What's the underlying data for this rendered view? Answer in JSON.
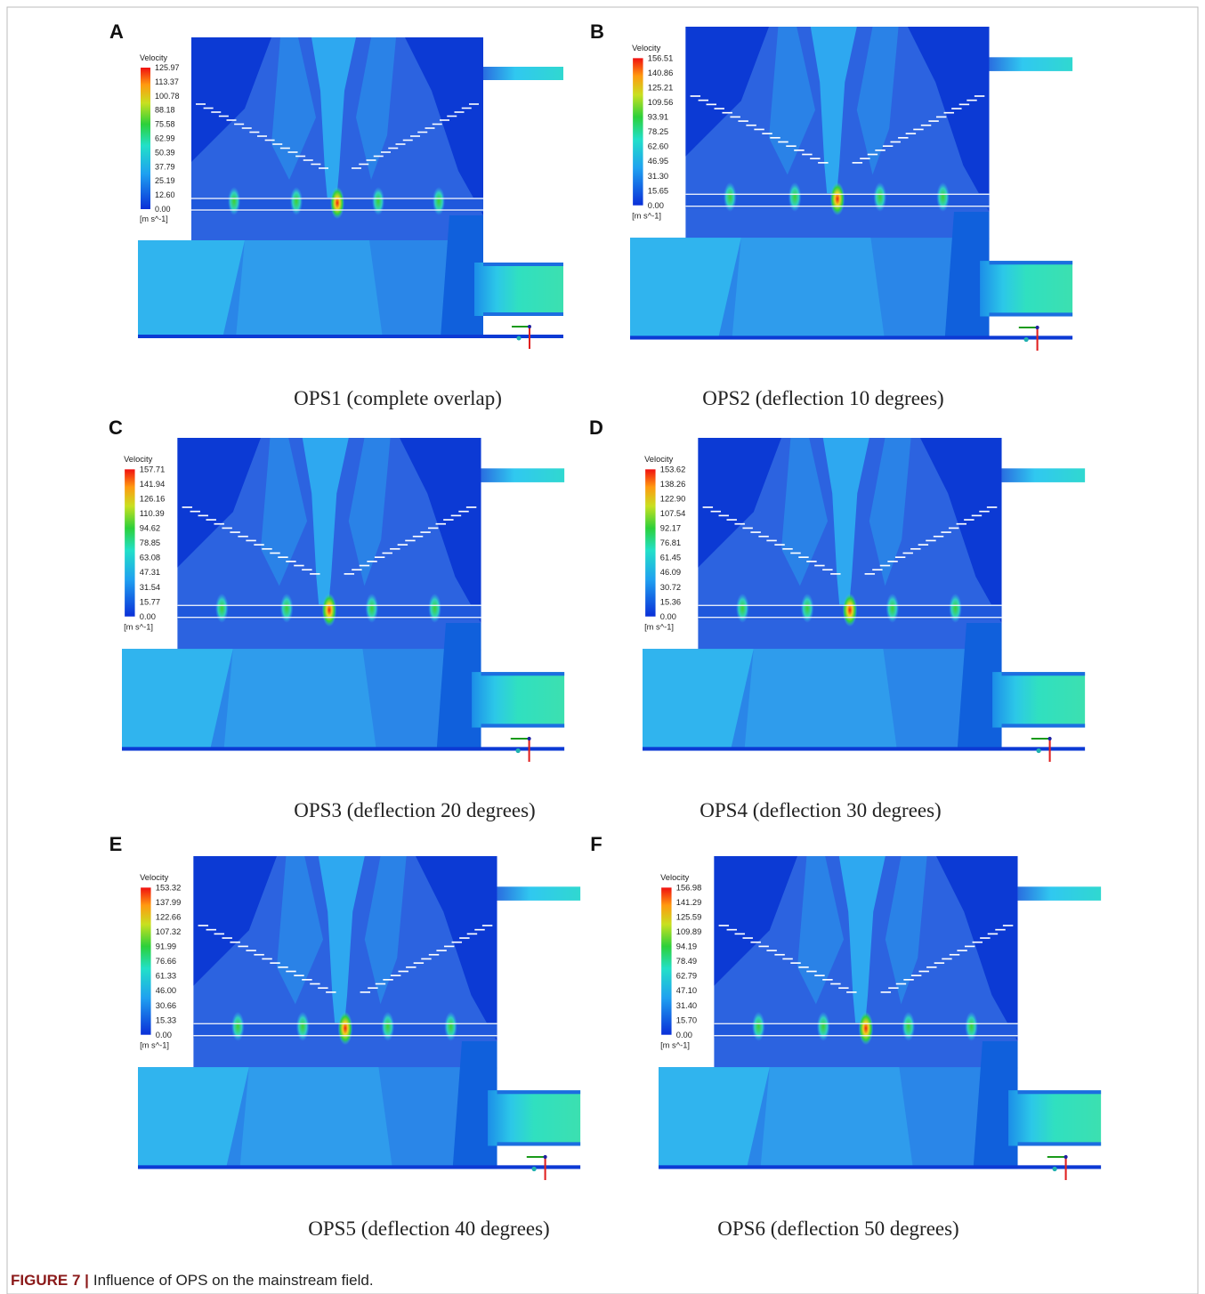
{
  "figure": {
    "label": "FIGURE 7 |",
    "caption": "Influence of OPS on the mainstream field."
  },
  "panels": [
    {
      "letter": "A",
      "legend_title": "Velocity",
      "legend_labels": [
        "125.97",
        "113.37",
        "100.78",
        "88.18",
        "75.58",
        "62.99",
        "50.39",
        "37.79",
        "25.19",
        "12.60",
        "0.00"
      ],
      "unit": "[m s^-1]",
      "caption": "OPS1 (complete overlap)"
    },
    {
      "letter": "B",
      "legend_title": "Velocity",
      "legend_labels": [
        "156.51",
        "140.86",
        "125.21",
        "109.56",
        "93.91",
        "78.25",
        "62.60",
        "46.95",
        "31.30",
        "15.65",
        "0.00"
      ],
      "unit": "[m s^-1]",
      "caption": "OPS2 (deflection 10 degrees)"
    },
    {
      "letter": "C",
      "legend_title": "Velocity",
      "legend_labels": [
        "157.71",
        "141.94",
        "126.16",
        "110.39",
        "94.62",
        "78.85",
        "63.08",
        "47.31",
        "31.54",
        "15.77",
        "0.00"
      ],
      "unit": "[m s^-1]",
      "caption": "OPS3 (deflection 20 degrees)"
    },
    {
      "letter": "D",
      "legend_title": "Velocity",
      "legend_labels": [
        "153.62",
        "138.26",
        "122.90",
        "107.54",
        "92.17",
        "76.81",
        "61.45",
        "46.09",
        "30.72",
        "15.36",
        "0.00"
      ],
      "unit": "[m s^-1]",
      "caption": "OPS4 (deflection 30 degrees)"
    },
    {
      "letter": "E",
      "legend_title": "Velocity",
      "legend_labels": [
        "153.32",
        "137.99",
        "122.66",
        "107.32",
        "91.99",
        "76.66",
        "61.33",
        "46.00",
        "30.66",
        "15.33",
        "0.00"
      ],
      "unit": "[m s^-1]",
      "caption": "OPS5 (deflection 40 degrees)"
    },
    {
      "letter": "F",
      "legend_title": "Velocity",
      "legend_labels": [
        "156.98",
        "141.29",
        "125.59",
        "109.89",
        "94.19",
        "78.49",
        "62.79",
        "47.10",
        "31.40",
        "15.70",
        "0.00"
      ],
      "unit": "[m s^-1]",
      "caption": "OPS6 (deflection 50 degrees)"
    }
  ]
}
